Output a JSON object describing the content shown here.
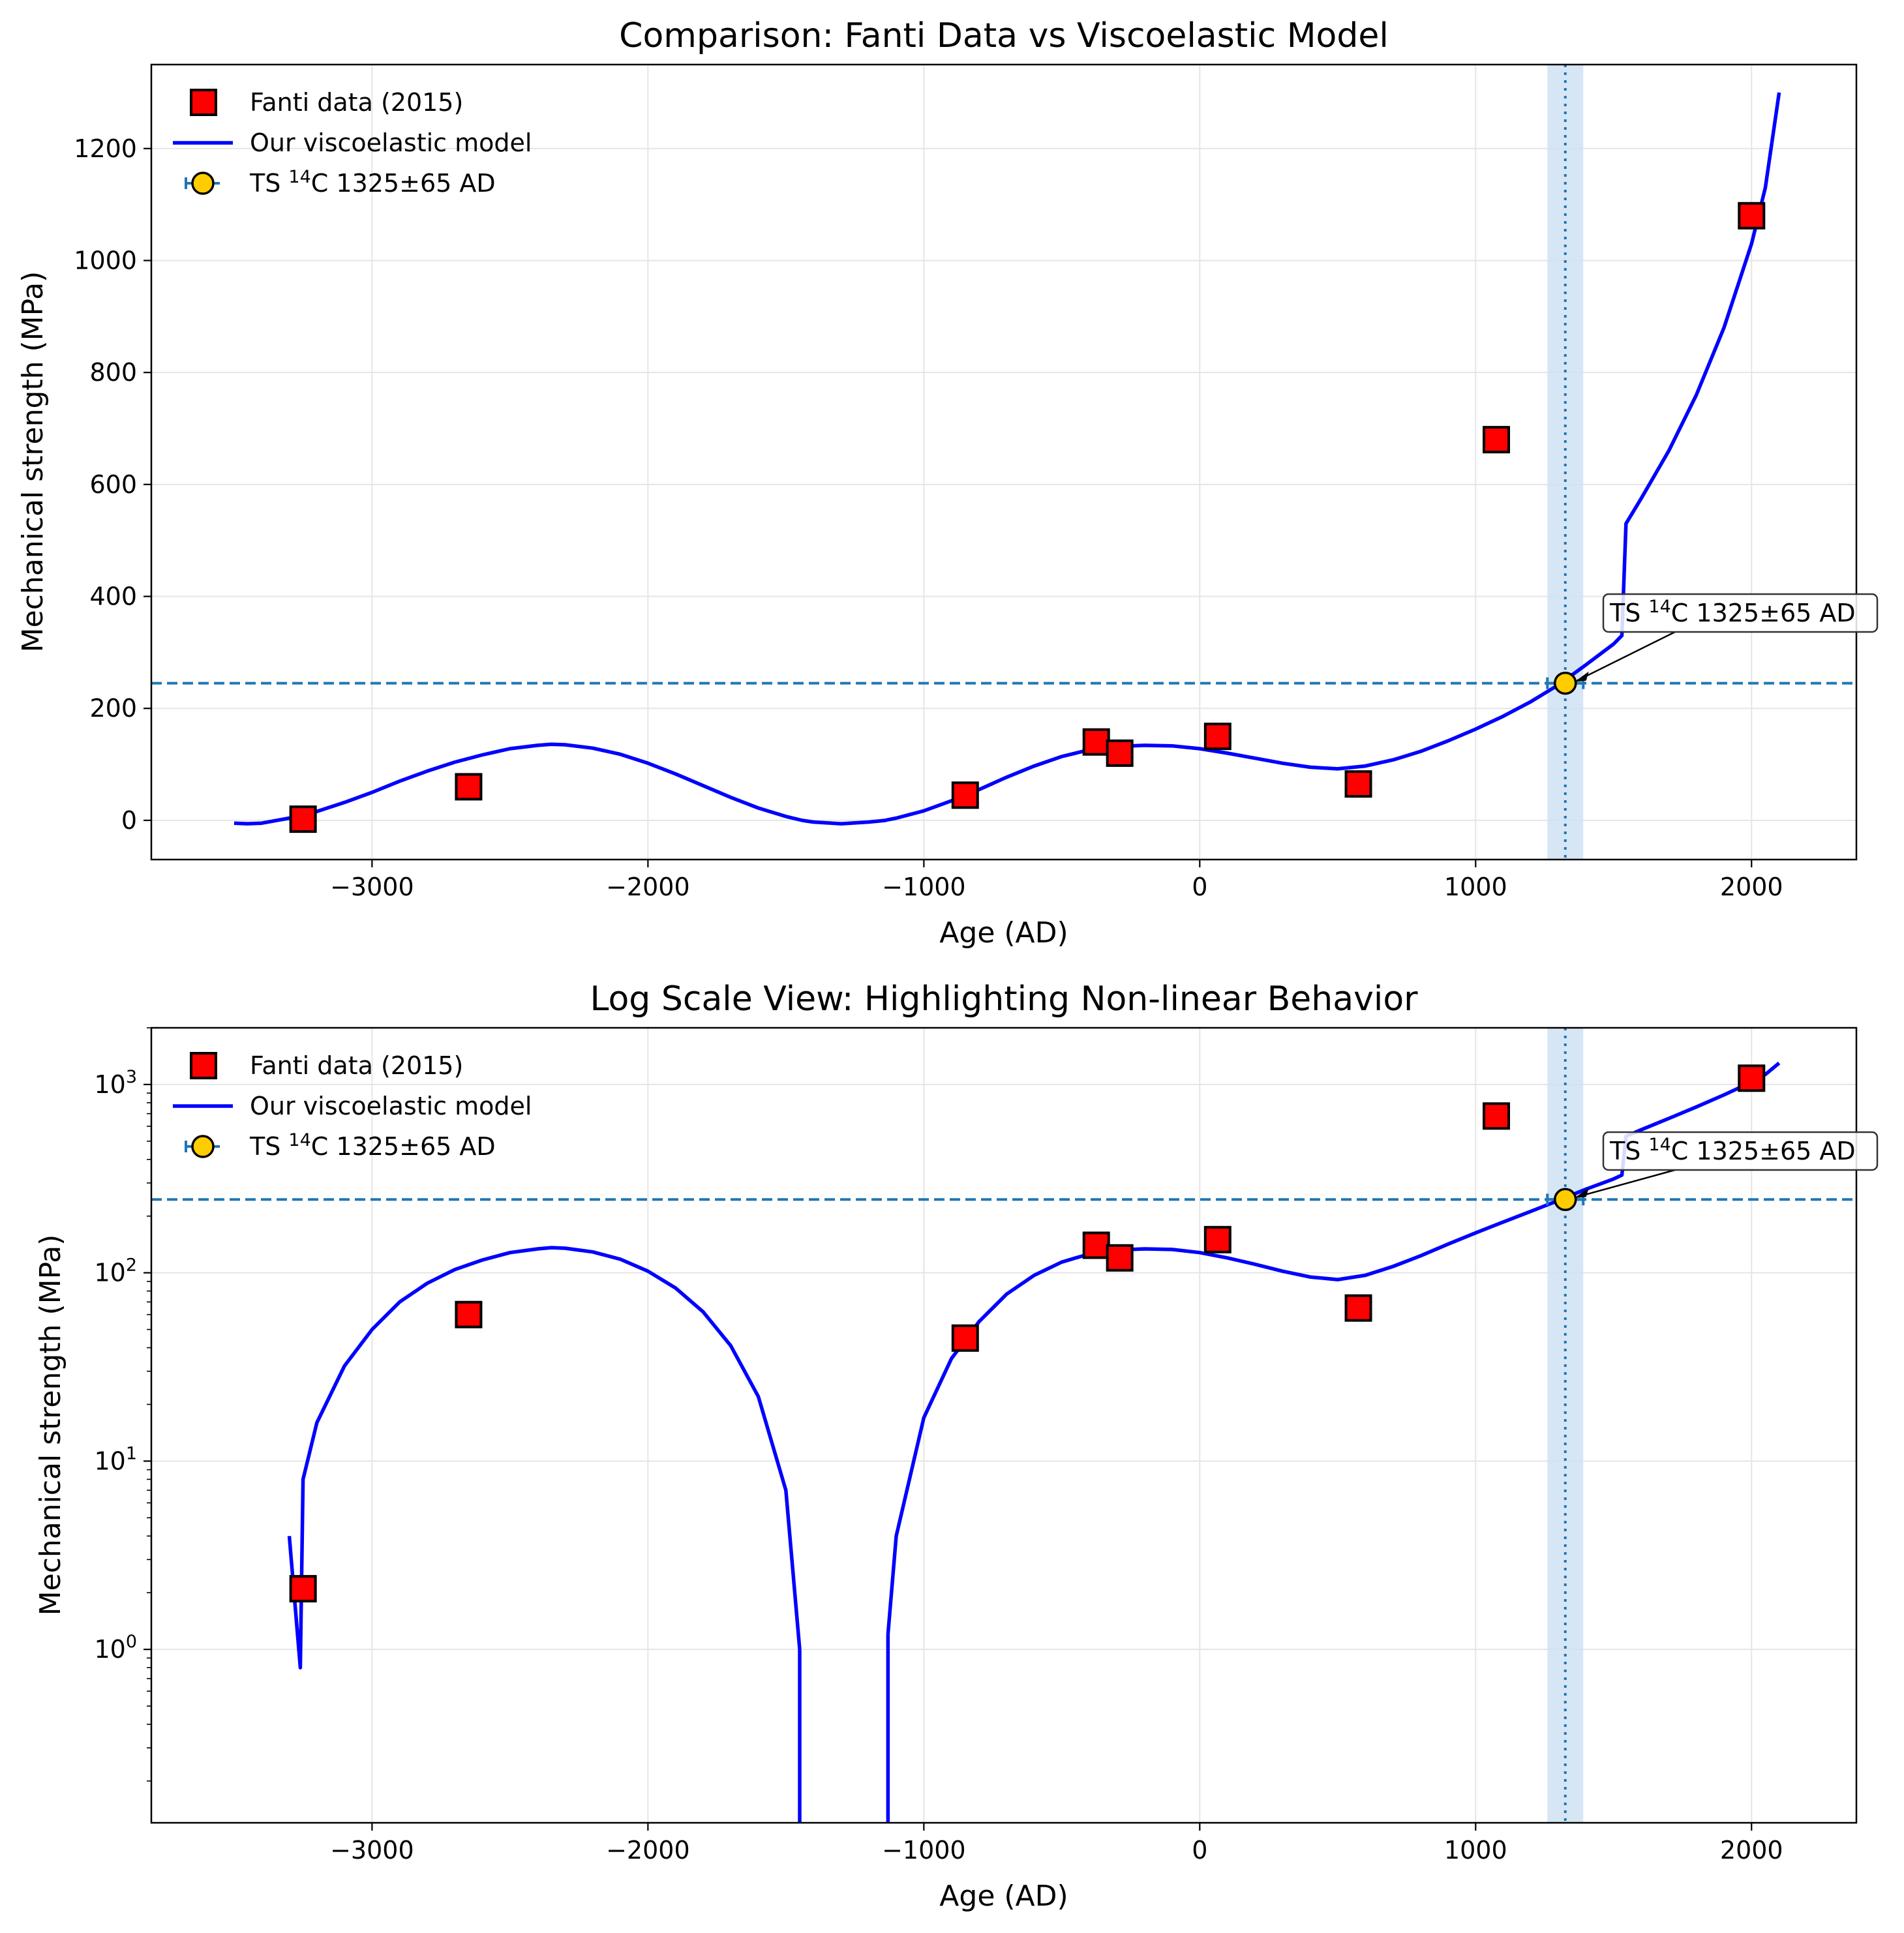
{
  "colors": {
    "data_fill": "#ff0000",
    "model": "#0000ff",
    "ts_point": "#ffcc00",
    "ref_line": "#1f77b4",
    "band": "#cfe2f3",
    "grid": "#e5e5e5"
  },
  "legend": {
    "entries": [
      {
        "label": "Fanti data (2015)",
        "marker": "square"
      },
      {
        "label": "Our viscoelastic model",
        "marker": "line"
      },
      {
        "label": "TS ",
        "sup": "14",
        "label_end": "C 1325±65 AD",
        "marker": "circle-errorbar"
      }
    ],
    "placement": "upper-left"
  },
  "annotation": {
    "text": "TS ",
    "sup": "14",
    "text_end": "C 1325±65 AD"
  },
  "chart_data": [
    {
      "type": "scatter",
      "title": "Comparison: Fanti Data vs Viscoelastic Model",
      "xlabel": "Age (AD)",
      "ylabel": "Mechanical strength (MPa)",
      "xlim": [
        -3800,
        2380
      ],
      "ylim": [
        -70,
        1350
      ],
      "yscale": "linear",
      "xticks": [
        -3000,
        -2000,
        -1000,
        0,
        1000,
        2000
      ],
      "xtick_labels": [
        "−3000",
        "−2000",
        "−1000",
        "0",
        "1000",
        "2000"
      ],
      "yticks": [
        0,
        200,
        400,
        600,
        800,
        1000,
        1200
      ],
      "ytick_labels": [
        "0",
        "200",
        "400",
        "600",
        "800",
        "1000",
        "1200"
      ],
      "grid": true
    },
    {
      "type": "scatter",
      "title": "Log Scale View: Highlighting Non-linear Behavior",
      "xlabel": "Age (AD)",
      "ylabel": "Mechanical strength (MPa)",
      "xlim": [
        -3800,
        2380
      ],
      "ylim": [
        0.12,
        2000
      ],
      "yscale": "log",
      "xticks": [
        -3000,
        -2000,
        -1000,
        0,
        1000,
        2000
      ],
      "xtick_labels": [
        "−3000",
        "−2000",
        "−1000",
        "0",
        "1000",
        "2000"
      ],
      "yticks": [
        1,
        10,
        100,
        1000
      ],
      "ytick_labels": [
        {
          "base": "10",
          "exp": "0"
        },
        {
          "base": "10",
          "exp": "1"
        },
        {
          "base": "10",
          "exp": "2"
        },
        {
          "base": "10",
          "exp": "3"
        }
      ],
      "grid": true
    }
  ],
  "series": {
    "fanti": [
      {
        "x": -3250,
        "y": 2.1
      },
      {
        "x": -2650,
        "y": 60
      },
      {
        "x": -850,
        "y": 45
      },
      {
        "x": -375,
        "y": 140
      },
      {
        "x": -290,
        "y": 120
      },
      {
        "x": 65,
        "y": 150
      },
      {
        "x": 575,
        "y": 65
      },
      {
        "x": 1075,
        "y": 680
      },
      {
        "x": 2000,
        "y": 1080
      }
    ],
    "model": [
      {
        "x": -3500,
        "y": -5
      },
      {
        "x": -3450,
        "y": -6
      },
      {
        "x": -3400,
        "y": -5
      },
      {
        "x": -3300,
        "y": 4
      },
      {
        "x": -3260,
        "y": 0.8
      },
      {
        "x": -3250,
        "y": 8
      },
      {
        "x": -3200,
        "y": 16
      },
      {
        "x": -3100,
        "y": 32
      },
      {
        "x": -3000,
        "y": 50
      },
      {
        "x": -2900,
        "y": 70
      },
      {
        "x": -2800,
        "y": 88
      },
      {
        "x": -2700,
        "y": 104
      },
      {
        "x": -2600,
        "y": 117
      },
      {
        "x": -2500,
        "y": 128
      },
      {
        "x": -2400,
        "y": 134
      },
      {
        "x": -2350,
        "y": 136
      },
      {
        "x": -2300,
        "y": 135
      },
      {
        "x": -2200,
        "y": 129
      },
      {
        "x": -2100,
        "y": 118
      },
      {
        "x": -2000,
        "y": 102
      },
      {
        "x": -1900,
        "y": 83
      },
      {
        "x": -1800,
        "y": 62
      },
      {
        "x": -1700,
        "y": 41
      },
      {
        "x": -1600,
        "y": 22
      },
      {
        "x": -1500,
        "y": 7
      },
      {
        "x": -1450,
        "y": 1
      },
      {
        "x": -1440,
        "y": -0.1
      },
      {
        "x": -1400,
        "y": -3
      },
      {
        "x": -1300,
        "y": -6
      },
      {
        "x": -1200,
        "y": -3
      },
      {
        "x": -1140,
        "y": -0.1
      },
      {
        "x": -1130,
        "y": 1.2
      },
      {
        "x": -1100,
        "y": 4
      },
      {
        "x": -1000,
        "y": 17
      },
      {
        "x": -900,
        "y": 35
      },
      {
        "x": -800,
        "y": 55
      },
      {
        "x": -700,
        "y": 77
      },
      {
        "x": -600,
        "y": 97
      },
      {
        "x": -500,
        "y": 114
      },
      {
        "x": -400,
        "y": 126
      },
      {
        "x": -300,
        "y": 132
      },
      {
        "x": -200,
        "y": 134
      },
      {
        "x": -100,
        "y": 133
      },
      {
        "x": 0,
        "y": 128
      },
      {
        "x": 100,
        "y": 120
      },
      {
        "x": 200,
        "y": 111
      },
      {
        "x": 300,
        "y": 102
      },
      {
        "x": 400,
        "y": 95
      },
      {
        "x": 500,
        "y": 92
      },
      {
        "x": 600,
        "y": 97
      },
      {
        "x": 700,
        "y": 108
      },
      {
        "x": 800,
        "y": 123
      },
      {
        "x": 900,
        "y": 142
      },
      {
        "x": 1000,
        "y": 163
      },
      {
        "x": 1100,
        "y": 186
      },
      {
        "x": 1200,
        "y": 212
      },
      {
        "x": 1300,
        "y": 242
      },
      {
        "x": 1400,
        "y": 278
      },
      {
        "x": 1500,
        "y": 315
      },
      {
        "x": 1530,
        "y": 330
      },
      {
        "x": 1545,
        "y": 530
      },
      {
        "x": 1600,
        "y": 575
      },
      {
        "x": 1700,
        "y": 660
      },
      {
        "x": 1800,
        "y": 760
      },
      {
        "x": 1900,
        "y": 880
      },
      {
        "x": 2000,
        "y": 1030
      },
      {
        "x": 2050,
        "y": 1130
      },
      {
        "x": 2100,
        "y": 1300
      }
    ],
    "ts_point": {
      "x": 1325,
      "y": 245,
      "x_error": 65
    },
    "ref_level": 245,
    "band": [
      1260,
      1390
    ]
  }
}
